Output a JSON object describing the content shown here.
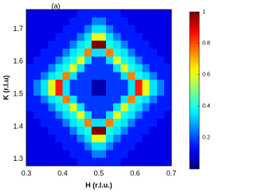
{
  "chart_data": {
    "type": "heatmap",
    "annotation": "(a)",
    "xlabel": "H (r.l.u.)",
    "ylabel": "K (r.l.u)",
    "xlim": [
      0.3,
      0.7
    ],
    "xticks": [
      0.3,
      0.4,
      0.5,
      0.6,
      0.7
    ],
    "ylim": [
      1.28,
      1.76
    ],
    "yticks": [
      1.3,
      1.4,
      1.5,
      1.6,
      1.7
    ],
    "colormap": "jet",
    "clim": [
      0,
      1
    ],
    "colorbar_ticks": [
      0.2,
      0.4,
      0.6,
      0.8,
      1
    ],
    "z": [
      [
        0.1,
        0.1,
        0.1,
        0.1,
        0.1,
        0.1,
        0.1,
        0.15,
        0.15,
        0.15,
        0.15,
        0.15,
        0.15,
        0.1,
        0.1,
        0.1,
        0.1,
        0.1,
        0.1,
        0.1
      ],
      [
        0.1,
        0.1,
        0.1,
        0.1,
        0.1,
        0.1,
        0.15,
        0.15,
        0.15,
        0.25,
        0.25,
        0.15,
        0.15,
        0.15,
        0.1,
        0.1,
        0.1,
        0.1,
        0.1,
        0.1
      ],
      [
        0.1,
        0.1,
        0.1,
        0.1,
        0.1,
        0.15,
        0.15,
        0.15,
        0.25,
        0.35,
        0.35,
        0.25,
        0.15,
        0.15,
        0.15,
        0.1,
        0.1,
        0.1,
        0.1,
        0.1
      ],
      [
        0.1,
        0.1,
        0.1,
        0.1,
        0.15,
        0.15,
        0.15,
        0.25,
        0.35,
        0.6,
        0.6,
        0.35,
        0.25,
        0.15,
        0.15,
        0.15,
        0.1,
        0.1,
        0.1,
        0.1
      ],
      [
        0.1,
        0.1,
        0.1,
        0.15,
        0.15,
        0.15,
        0.25,
        0.35,
        0.4,
        1,
        1,
        0.4,
        0.35,
        0.25,
        0.15,
        0.15,
        0.15,
        0.1,
        0.1,
        0.1
      ],
      [
        0.1,
        0.1,
        0.15,
        0.15,
        0.15,
        0.25,
        0.35,
        0.4,
        0.75,
        0.35,
        0.35,
        0.75,
        0.4,
        0.35,
        0.25,
        0.15,
        0.15,
        0.15,
        0.1,
        0.1
      ],
      [
        0.1,
        0.15,
        0.15,
        0.15,
        0.25,
        0.35,
        0.4,
        0.6,
        0.35,
        0.18,
        0.18,
        0.35,
        0.6,
        0.4,
        0.35,
        0.25,
        0.15,
        0.15,
        0.15,
        0.1
      ],
      [
        0.15,
        0.15,
        0.15,
        0.25,
        0.35,
        0.4,
        0.6,
        0.35,
        0.18,
        0.18,
        0.18,
        0.18,
        0.35,
        0.6,
        0.4,
        0.35,
        0.25,
        0.15,
        0.15,
        0.15
      ],
      [
        0.15,
        0.15,
        0.25,
        0.35,
        0.4,
        0.75,
        0.35,
        0.18,
        0.18,
        0.18,
        0.18,
        0.18,
        0.18,
        0.35,
        0.75,
        0.4,
        0.35,
        0.25,
        0.15,
        0.15
      ],
      [
        0.15,
        0.25,
        0.35,
        0.6,
        0.85,
        0.35,
        0.18,
        0.18,
        0.18,
        0.05,
        0.05,
        0.18,
        0.18,
        0.18,
        0.35,
        0.85,
        0.6,
        0.35,
        0.25,
        0.15
      ],
      [
        0.15,
        0.25,
        0.35,
        0.6,
        0.85,
        0.35,
        0.18,
        0.18,
        0.18,
        0.05,
        0.05,
        0.18,
        0.18,
        0.18,
        0.35,
        0.85,
        0.6,
        0.35,
        0.25,
        0.15
      ],
      [
        0.15,
        0.15,
        0.25,
        0.35,
        0.4,
        0.75,
        0.35,
        0.18,
        0.18,
        0.18,
        0.18,
        0.18,
        0.18,
        0.35,
        0.75,
        0.4,
        0.35,
        0.25,
        0.15,
        0.15
      ],
      [
        0.15,
        0.15,
        0.15,
        0.25,
        0.35,
        0.4,
        0.6,
        0.35,
        0.18,
        0.18,
        0.18,
        0.18,
        0.35,
        0.6,
        0.4,
        0.35,
        0.25,
        0.15,
        0.15,
        0.15
      ],
      [
        0.1,
        0.15,
        0.15,
        0.15,
        0.25,
        0.35,
        0.4,
        0.6,
        0.35,
        0.18,
        0.18,
        0.35,
        0.6,
        0.4,
        0.35,
        0.25,
        0.15,
        0.15,
        0.15,
        0.1
      ],
      [
        0.1,
        0.1,
        0.15,
        0.15,
        0.15,
        0.25,
        0.35,
        0.4,
        0.75,
        0.35,
        0.35,
        0.75,
        0.4,
        0.35,
        0.25,
        0.15,
        0.15,
        0.15,
        0.1,
        0.1
      ],
      [
        0.1,
        0.1,
        0.1,
        0.15,
        0.15,
        0.15,
        0.25,
        0.35,
        0.4,
        1,
        1,
        0.4,
        0.35,
        0.25,
        0.15,
        0.15,
        0.15,
        0.1,
        0.1,
        0.1
      ],
      [
        0.1,
        0.1,
        0.1,
        0.1,
        0.15,
        0.15,
        0.15,
        0.25,
        0.35,
        0.6,
        0.6,
        0.35,
        0.25,
        0.15,
        0.15,
        0.15,
        0.1,
        0.1,
        0.1,
        0.1
      ],
      [
        0.1,
        0.1,
        0.1,
        0.1,
        0.1,
        0.15,
        0.15,
        0.15,
        0.25,
        0.35,
        0.35,
        0.25,
        0.15,
        0.15,
        0.15,
        0.1,
        0.1,
        0.1,
        0.1,
        0.1
      ],
      [
        0.1,
        0.1,
        0.1,
        0.1,
        0.1,
        0.1,
        0.15,
        0.15,
        0.15,
        0.25,
        0.25,
        0.15,
        0.15,
        0.15,
        0.1,
        0.1,
        0.1,
        0.1,
        0.1,
        0.1
      ],
      [
        0.1,
        0.1,
        0.1,
        0.1,
        0.1,
        0.1,
        0.1,
        0.15,
        0.15,
        0.15,
        0.15,
        0.15,
        0.15,
        0.1,
        0.1,
        0.1,
        0.1,
        0.1,
        0.1,
        0.1
      ]
    ]
  }
}
